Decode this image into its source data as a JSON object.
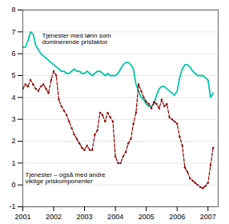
{
  "chart_data": {
    "type": "line",
    "x": [
      2001.0,
      2001.083,
      2001.167,
      2001.25,
      2001.333,
      2001.417,
      2001.5,
      2001.583,
      2001.667,
      2001.75,
      2001.833,
      2001.917,
      2002.0,
      2002.083,
      2002.167,
      2002.25,
      2002.333,
      2002.417,
      2002.5,
      2002.583,
      2002.667,
      2002.75,
      2002.833,
      2002.917,
      2003.0,
      2003.083,
      2003.167,
      2003.25,
      2003.333,
      2003.417,
      2003.5,
      2003.583,
      2003.667,
      2003.75,
      2003.833,
      2003.917,
      2004.0,
      2004.083,
      2004.167,
      2004.25,
      2004.333,
      2004.417,
      2004.5,
      2004.583,
      2004.667,
      2004.75,
      2004.833,
      2004.917,
      2005.0,
      2005.083,
      2005.167,
      2005.25,
      2005.333,
      2005.417,
      2005.5,
      2005.583,
      2005.667,
      2005.75,
      2005.833,
      2005.917,
      2006.0,
      2006.083,
      2006.167,
      2006.25,
      2006.333,
      2006.417,
      2006.5,
      2006.583,
      2006.667,
      2006.75,
      2006.833,
      2006.917,
      2007.0,
      2007.083,
      2007.167
    ],
    "series": [
      {
        "name": "Tjenester med lønn som\ndominerende prisfaktor",
        "color": "#00C8A8",
        "line_style": "solid",
        "values": [
          6.3,
          6.3,
          6.6,
          7.0,
          6.9,
          6.4,
          6.2,
          6.0,
          5.9,
          5.8,
          5.7,
          5.6,
          5.5,
          5.4,
          5.3,
          5.2,
          5.2,
          5.1,
          5.1,
          5.2,
          5.3,
          5.2,
          5.2,
          5.1,
          5.1,
          5.2,
          5.1,
          5.0,
          5.1,
          5.2,
          5.2,
          5.1,
          5.0,
          5.1,
          5.0,
          5.0,
          5.0,
          5.1,
          5.3,
          5.5,
          5.6,
          5.6,
          5.5,
          5.3,
          4.6,
          4.3,
          4.0,
          3.9,
          3.7,
          3.6,
          3.6,
          3.7,
          4.1,
          4.4,
          4.5,
          4.5,
          4.4,
          4.3,
          4.2,
          4.1,
          4.3,
          4.9,
          5.3,
          5.5,
          5.5,
          5.4,
          5.2,
          5.1,
          5.0,
          5.0,
          5.0,
          4.9,
          4.8,
          4.0,
          4.2
        ]
      },
      {
        "name": "Tjenester – også med andre\nviktige priskomponenter",
        "color": "#8B0000",
        "line_style": "dashed",
        "marker": "dot",
        "values": [
          4.4,
          4.6,
          4.5,
          4.8,
          4.6,
          4.4,
          4.3,
          4.5,
          4.6,
          4.4,
          4.2,
          4.8,
          5.2,
          5.0,
          3.9,
          3.6,
          3.4,
          3.2,
          2.9,
          2.6,
          2.3,
          2.1,
          1.9,
          1.7,
          1.6,
          1.8,
          1.6,
          1.6,
          2.3,
          2.5,
          3.3,
          3.2,
          2.9,
          3.3,
          3.1,
          2.9,
          1.3,
          1.0,
          1.0,
          1.3,
          1.5,
          1.9,
          2.1,
          2.8,
          3.3,
          4.6,
          4.3,
          4.0,
          3.8,
          3.7,
          3.5,
          3.8,
          3.7,
          3.5,
          3.9,
          3.6,
          3.7,
          3.1,
          3.0,
          2.9,
          2.8,
          2.2,
          1.8,
          0.8,
          0.6,
          0.3,
          0.2,
          0.1,
          0.0,
          -0.1,
          -0.15,
          -0.05,
          0.1,
          0.9,
          1.7
        ]
      }
    ],
    "xlim": [
      2001.0,
      2007.33
    ],
    "xticks": [
      2001,
      2002,
      2003,
      2004,
      2005,
      2006,
      2007
    ],
    "ylim": [
      -1,
      8
    ],
    "yticks": [
      -1,
      0,
      1,
      2,
      3,
      4,
      5,
      6,
      7,
      8
    ],
    "grid": true
  }
}
